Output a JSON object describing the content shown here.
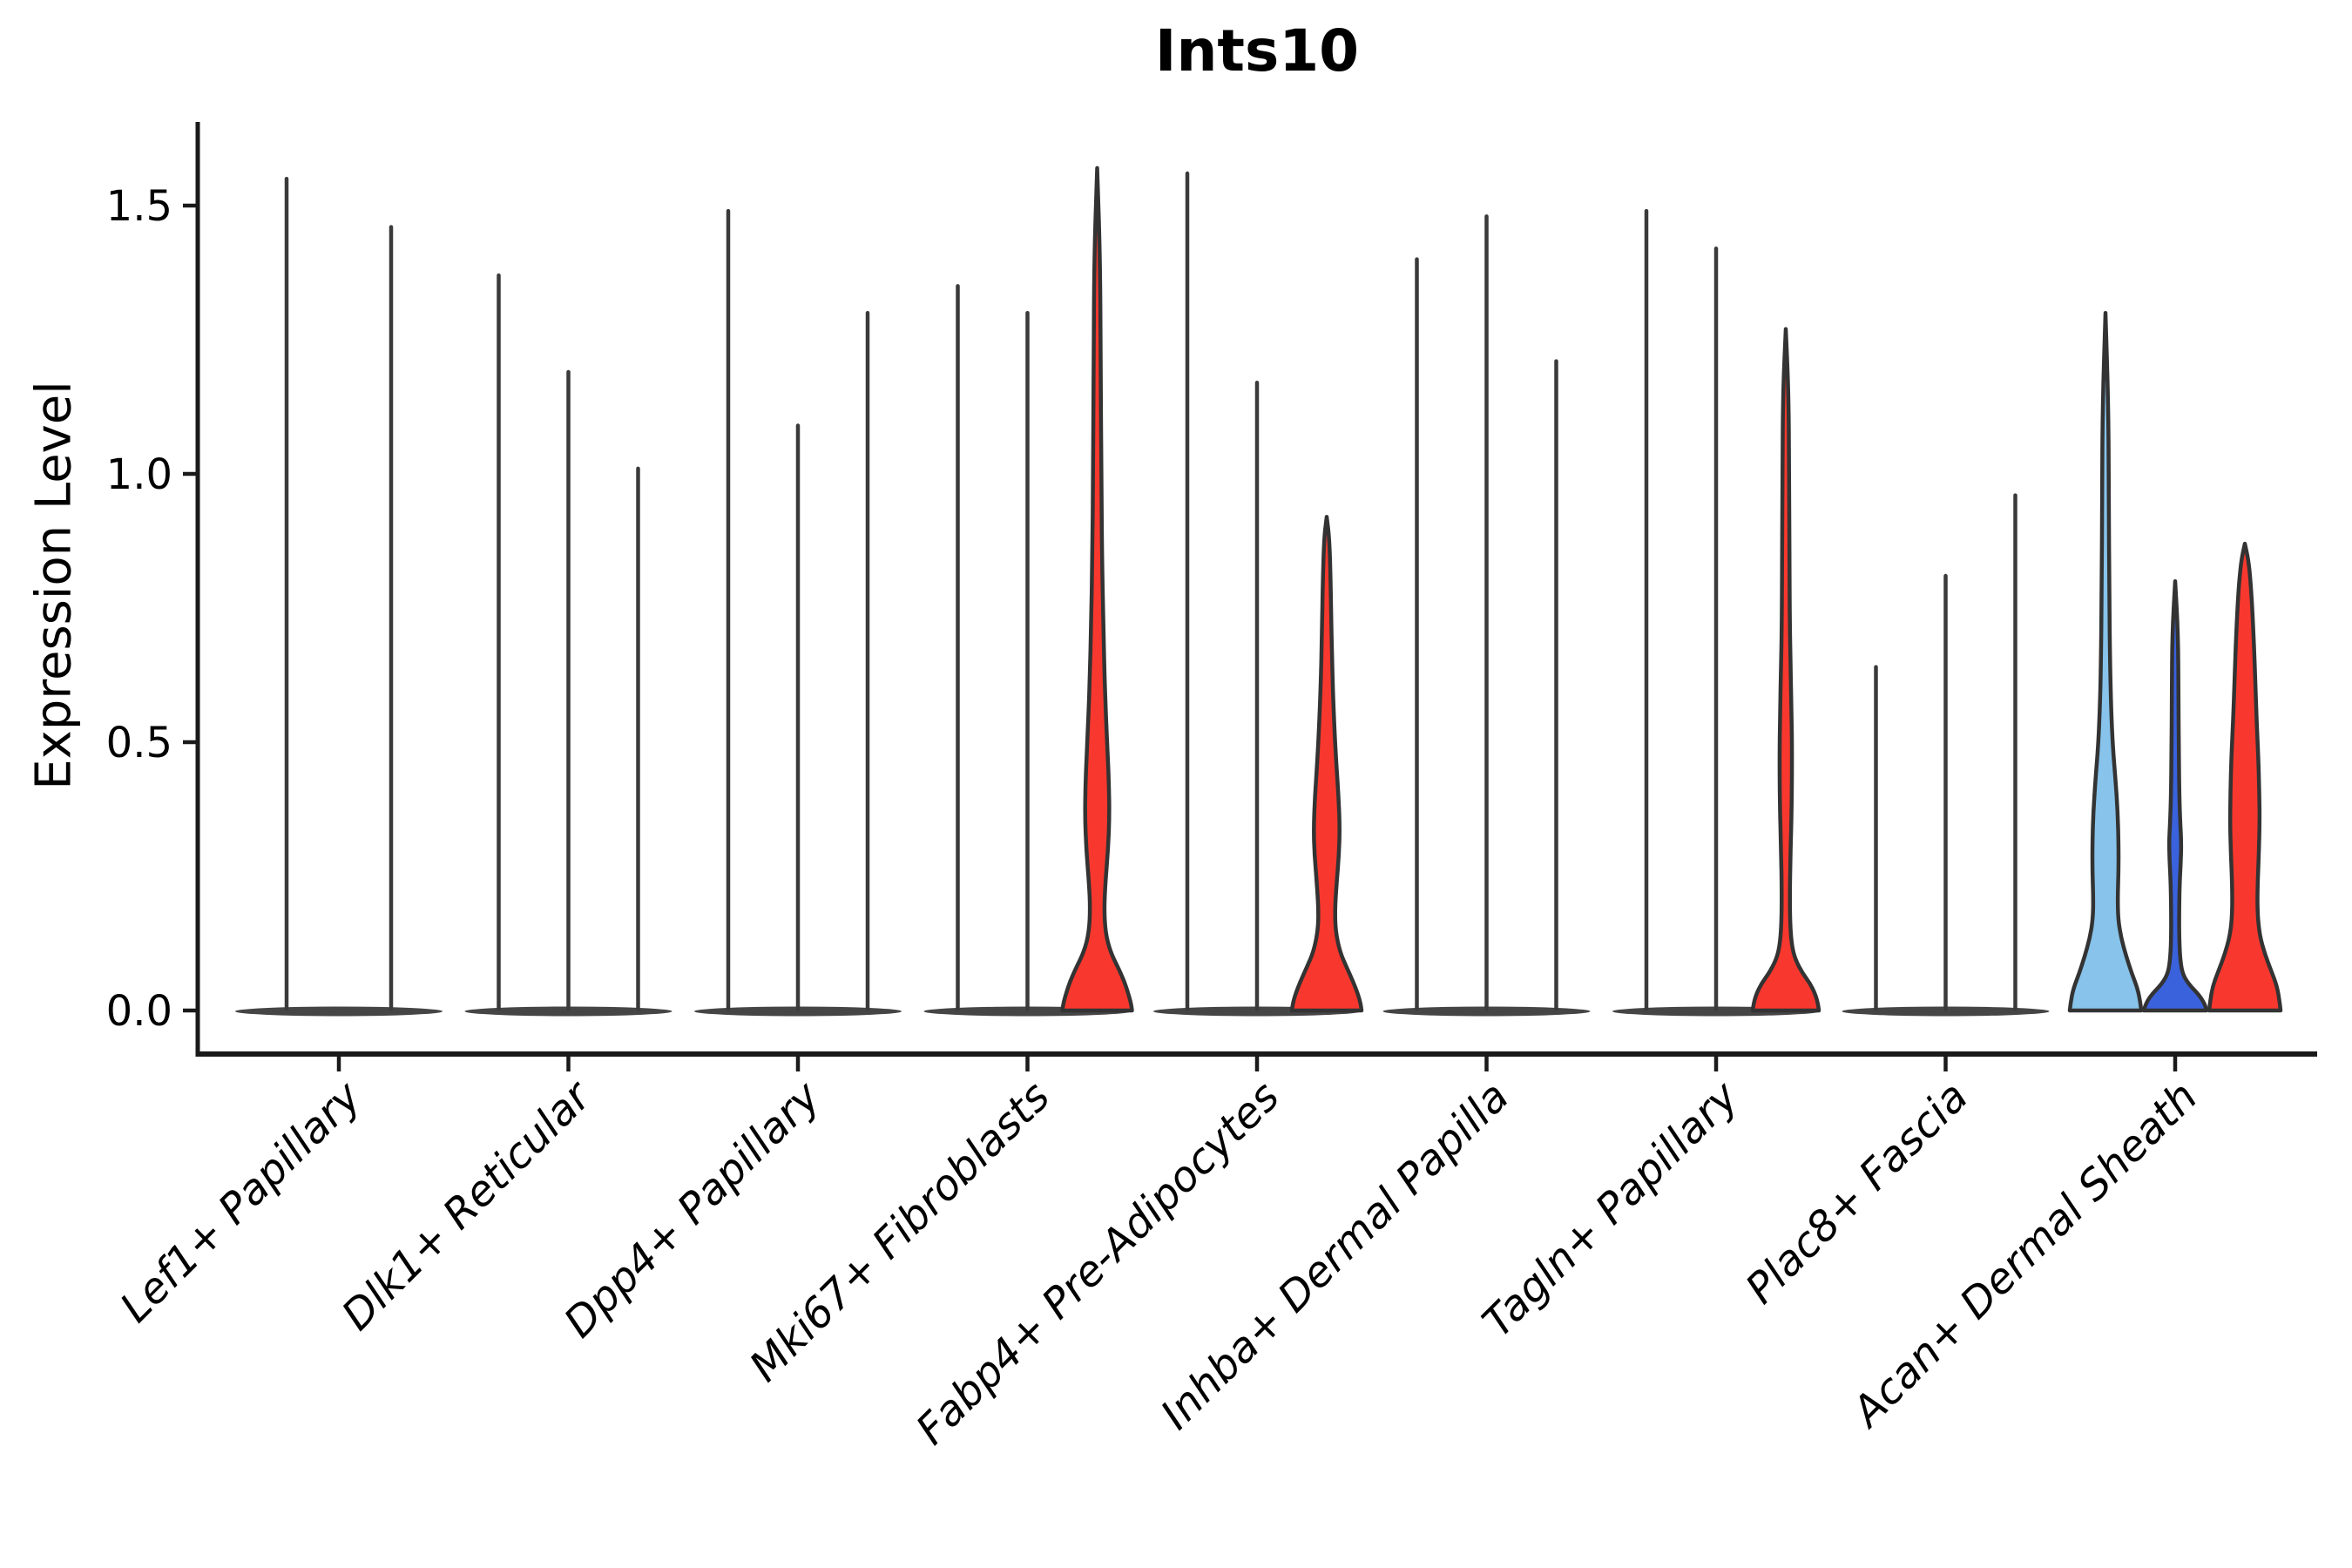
{
  "header": {
    "title": "Ints10"
  },
  "axes": {
    "y_label": "Expression Level",
    "y_tick_labels": [
      "0.0",
      "0.5",
      "1.0",
      "1.5"
    ]
  },
  "colors": {
    "background": "#ffffff",
    "spine": "#1a1a1a",
    "spike": "#3a3a3a",
    "violin_outline": "#333333",
    "pancake_fill": "#454545",
    "text": "#000000",
    "red": "#f8382e",
    "light_blue": "#87c3ea",
    "dark_blue": "#3a62dd"
  },
  "chart_data": {
    "type": "violin",
    "title": "Ints10",
    "xlabel": "",
    "ylabel": "Expression Level",
    "ylim": [
      -0.08,
      1.66
    ],
    "yticks": [
      0.0,
      0.5,
      1.0,
      1.5
    ],
    "grid": false,
    "legend": "none",
    "x_tick_rotation_deg": 45,
    "categories": [
      "Lef1+ Papillary",
      "Dlk1+ Reticular",
      "Dpp4+ Papillary",
      "Mki67+ Fibroblasts",
      "Fabp4+ Pre-Adipocytes",
      "Inhba+ Dermal Papilla",
      "Tagln+ Papillary",
      "Plac8+ Fascia",
      "Acan+ Dermal Sheath"
    ],
    "groups": [
      {
        "name": "Lef1+ Papillary",
        "violins": [
          {
            "kind": "spike",
            "max": 1.55,
            "color": "#3a3a3a"
          },
          {
            "kind": "spike",
            "max": 1.46,
            "color": "#3a3a3a"
          }
        ]
      },
      {
        "name": "Dlk1+ Reticular",
        "violins": [
          {
            "kind": "spike",
            "max": 1.37,
            "color": "#3a3a3a"
          },
          {
            "kind": "spike",
            "max": 1.19,
            "color": "#3a3a3a"
          },
          {
            "kind": "spike",
            "max": 1.01,
            "color": "#3a3a3a"
          }
        ]
      },
      {
        "name": "Dpp4+ Papillary",
        "violins": [
          {
            "kind": "spike",
            "max": 1.49,
            "color": "#3a3a3a"
          },
          {
            "kind": "spike",
            "max": 1.09,
            "color": "#3a3a3a"
          },
          {
            "kind": "spike",
            "max": 1.3,
            "color": "#3a3a3a"
          }
        ]
      },
      {
        "name": "Mki67+ Fibroblasts",
        "violins": [
          {
            "kind": "spike",
            "max": 1.35,
            "color": "#3a3a3a"
          },
          {
            "kind": "spike",
            "max": 1.3,
            "color": "#3a3a3a"
          },
          {
            "kind": "shape",
            "max": 1.57,
            "color": "#f8382e",
            "profile": [
              [
                0,
                40
              ],
              [
                0.012,
                39
              ],
              [
                0.03,
                36
              ],
              [
                0.055,
                31
              ],
              [
                0.08,
                24
              ],
              [
                0.11,
                15
              ],
              [
                0.145,
                9.5
              ],
              [
                0.19,
                8
              ],
              [
                0.24,
                9.5
              ],
              [
                0.3,
                12.5
              ],
              [
                0.36,
                14
              ],
              [
                0.42,
                13.5
              ],
              [
                0.48,
                12
              ],
              [
                0.55,
                10
              ],
              [
                0.62,
                8.5
              ],
              [
                0.72,
                7
              ],
              [
                0.85,
                5.5
              ],
              [
                1.0,
                4.8
              ],
              [
                1.2,
                4
              ],
              [
                1.4,
                3.4
              ],
              [
                1.57,
                0
              ]
            ]
          }
        ]
      },
      {
        "name": "Fabp4+ Pre-Adipocytes",
        "violins": [
          {
            "kind": "spike",
            "max": 1.56,
            "color": "#3a3a3a"
          },
          {
            "kind": "spike",
            "max": 1.17,
            "color": "#3a3a3a"
          },
          {
            "kind": "shape",
            "max": 0.92,
            "color": "#f8382e",
            "profile": [
              [
                0,
                40
              ],
              [
                0.012,
                39
              ],
              [
                0.03,
                36
              ],
              [
                0.055,
                30
              ],
              [
                0.08,
                23
              ],
              [
                0.11,
                15
              ],
              [
                0.15,
                10
              ],
              [
                0.19,
                9.5
              ],
              [
                0.24,
                11.5
              ],
              [
                0.29,
                14
              ],
              [
                0.34,
                15
              ],
              [
                0.4,
                13.5
              ],
              [
                0.46,
                11
              ],
              [
                0.52,
                9
              ],
              [
                0.6,
                7
              ],
              [
                0.7,
                5.5
              ],
              [
                0.8,
                4.5
              ],
              [
                0.88,
                3
              ],
              [
                0.92,
                0
              ]
            ]
          }
        ]
      },
      {
        "name": "Inhba+ Dermal Papilla",
        "violins": [
          {
            "kind": "spike",
            "max": 1.4,
            "color": "#3a3a3a"
          },
          {
            "kind": "spike",
            "max": 1.48,
            "color": "#3a3a3a"
          },
          {
            "kind": "spike",
            "max": 1.21,
            "color": "#3a3a3a"
          }
        ]
      },
      {
        "name": "Tagln+ Papillary",
        "violins": [
          {
            "kind": "spike",
            "max": 1.49,
            "color": "#3a3a3a"
          },
          {
            "kind": "spike",
            "max": 1.42,
            "color": "#3a3a3a"
          },
          {
            "kind": "shape",
            "max": 1.27,
            "color": "#f8382e",
            "profile": [
              [
                0,
                38
              ],
              [
                0.012,
                37
              ],
              [
                0.03,
                34
              ],
              [
                0.05,
                28
              ],
              [
                0.07,
                19
              ],
              [
                0.095,
                11
              ],
              [
                0.12,
                7
              ],
              [
                0.16,
                5
              ],
              [
                0.22,
                4.6
              ],
              [
                0.3,
                5.5
              ],
              [
                0.38,
                6.8
              ],
              [
                0.48,
                7.2
              ],
              [
                0.56,
                6.5
              ],
              [
                0.64,
                5.5
              ],
              [
                0.72,
                4.6
              ],
              [
                0.85,
                4.2
              ],
              [
                1.0,
                3.8
              ],
              [
                1.15,
                3.2
              ],
              [
                1.27,
                0
              ]
            ]
          }
        ]
      },
      {
        "name": "Plac8+ Fascia",
        "violins": [
          {
            "kind": "spike",
            "max": 0.64,
            "color": "#3a3a3a"
          },
          {
            "kind": "spike",
            "max": 0.81,
            "color": "#3a3a3a"
          },
          {
            "kind": "spike",
            "max": 0.96,
            "color": "#3a3a3a"
          }
        ]
      },
      {
        "name": "Acan+ Dermal Sheath",
        "violins": [
          {
            "kind": "shape",
            "max": 1.3,
            "color": "#87c3ea",
            "profile": [
              [
                0,
                41
              ],
              [
                0.015,
                40
              ],
              [
                0.04,
                37
              ],
              [
                0.07,
                30
              ],
              [
                0.1,
                24
              ],
              [
                0.135,
                18
              ],
              [
                0.17,
                14.5
              ],
              [
                0.21,
                14
              ],
              [
                0.26,
                15
              ],
              [
                0.31,
                15
              ],
              [
                0.37,
                14
              ],
              [
                0.43,
                11.5
              ],
              [
                0.49,
                8.5
              ],
              [
                0.56,
                6.5
              ],
              [
                0.65,
                5.2
              ],
              [
                0.78,
                4.4
              ],
              [
                0.95,
                3.8
              ],
              [
                1.12,
                3.4
              ],
              [
                1.3,
                0
              ]
            ]
          },
          {
            "kind": "shape",
            "max": 0.8,
            "color": "#3a62dd",
            "profile": [
              [
                0,
                36
              ],
              [
                0.012,
                34
              ],
              [
                0.03,
                27
              ],
              [
                0.05,
                15
              ],
              [
                0.07,
                8
              ],
              [
                0.1,
                5.5
              ],
              [
                0.14,
                4.6
              ],
              [
                0.19,
                4.6
              ],
              [
                0.24,
                5.2
              ],
              [
                0.28,
                6.5
              ],
              [
                0.315,
                7
              ],
              [
                0.35,
                5.8
              ],
              [
                0.4,
                4.8
              ],
              [
                0.48,
                4.2
              ],
              [
                0.58,
                3.8
              ],
              [
                0.7,
                3.4
              ],
              [
                0.8,
                0
              ]
            ]
          },
          {
            "kind": "shape",
            "max": 0.87,
            "color": "#f8382e",
            "profile": [
              [
                0,
                41
              ],
              [
                0.015,
                40
              ],
              [
                0.045,
                37
              ],
              [
                0.075,
                30
              ],
              [
                0.105,
                23
              ],
              [
                0.14,
                17
              ],
              [
                0.18,
                14.5
              ],
              [
                0.23,
                14.5
              ],
              [
                0.29,
                16
              ],
              [
                0.35,
                17
              ],
              [
                0.41,
                16.5
              ],
              [
                0.47,
                15.5
              ],
              [
                0.54,
                13.5
              ],
              [
                0.61,
                12
              ],
              [
                0.68,
                10.5
              ],
              [
                0.75,
                8.5
              ],
              [
                0.8,
                6.5
              ],
              [
                0.84,
                4
              ],
              [
                0.87,
                0
              ]
            ]
          }
        ]
      }
    ]
  }
}
